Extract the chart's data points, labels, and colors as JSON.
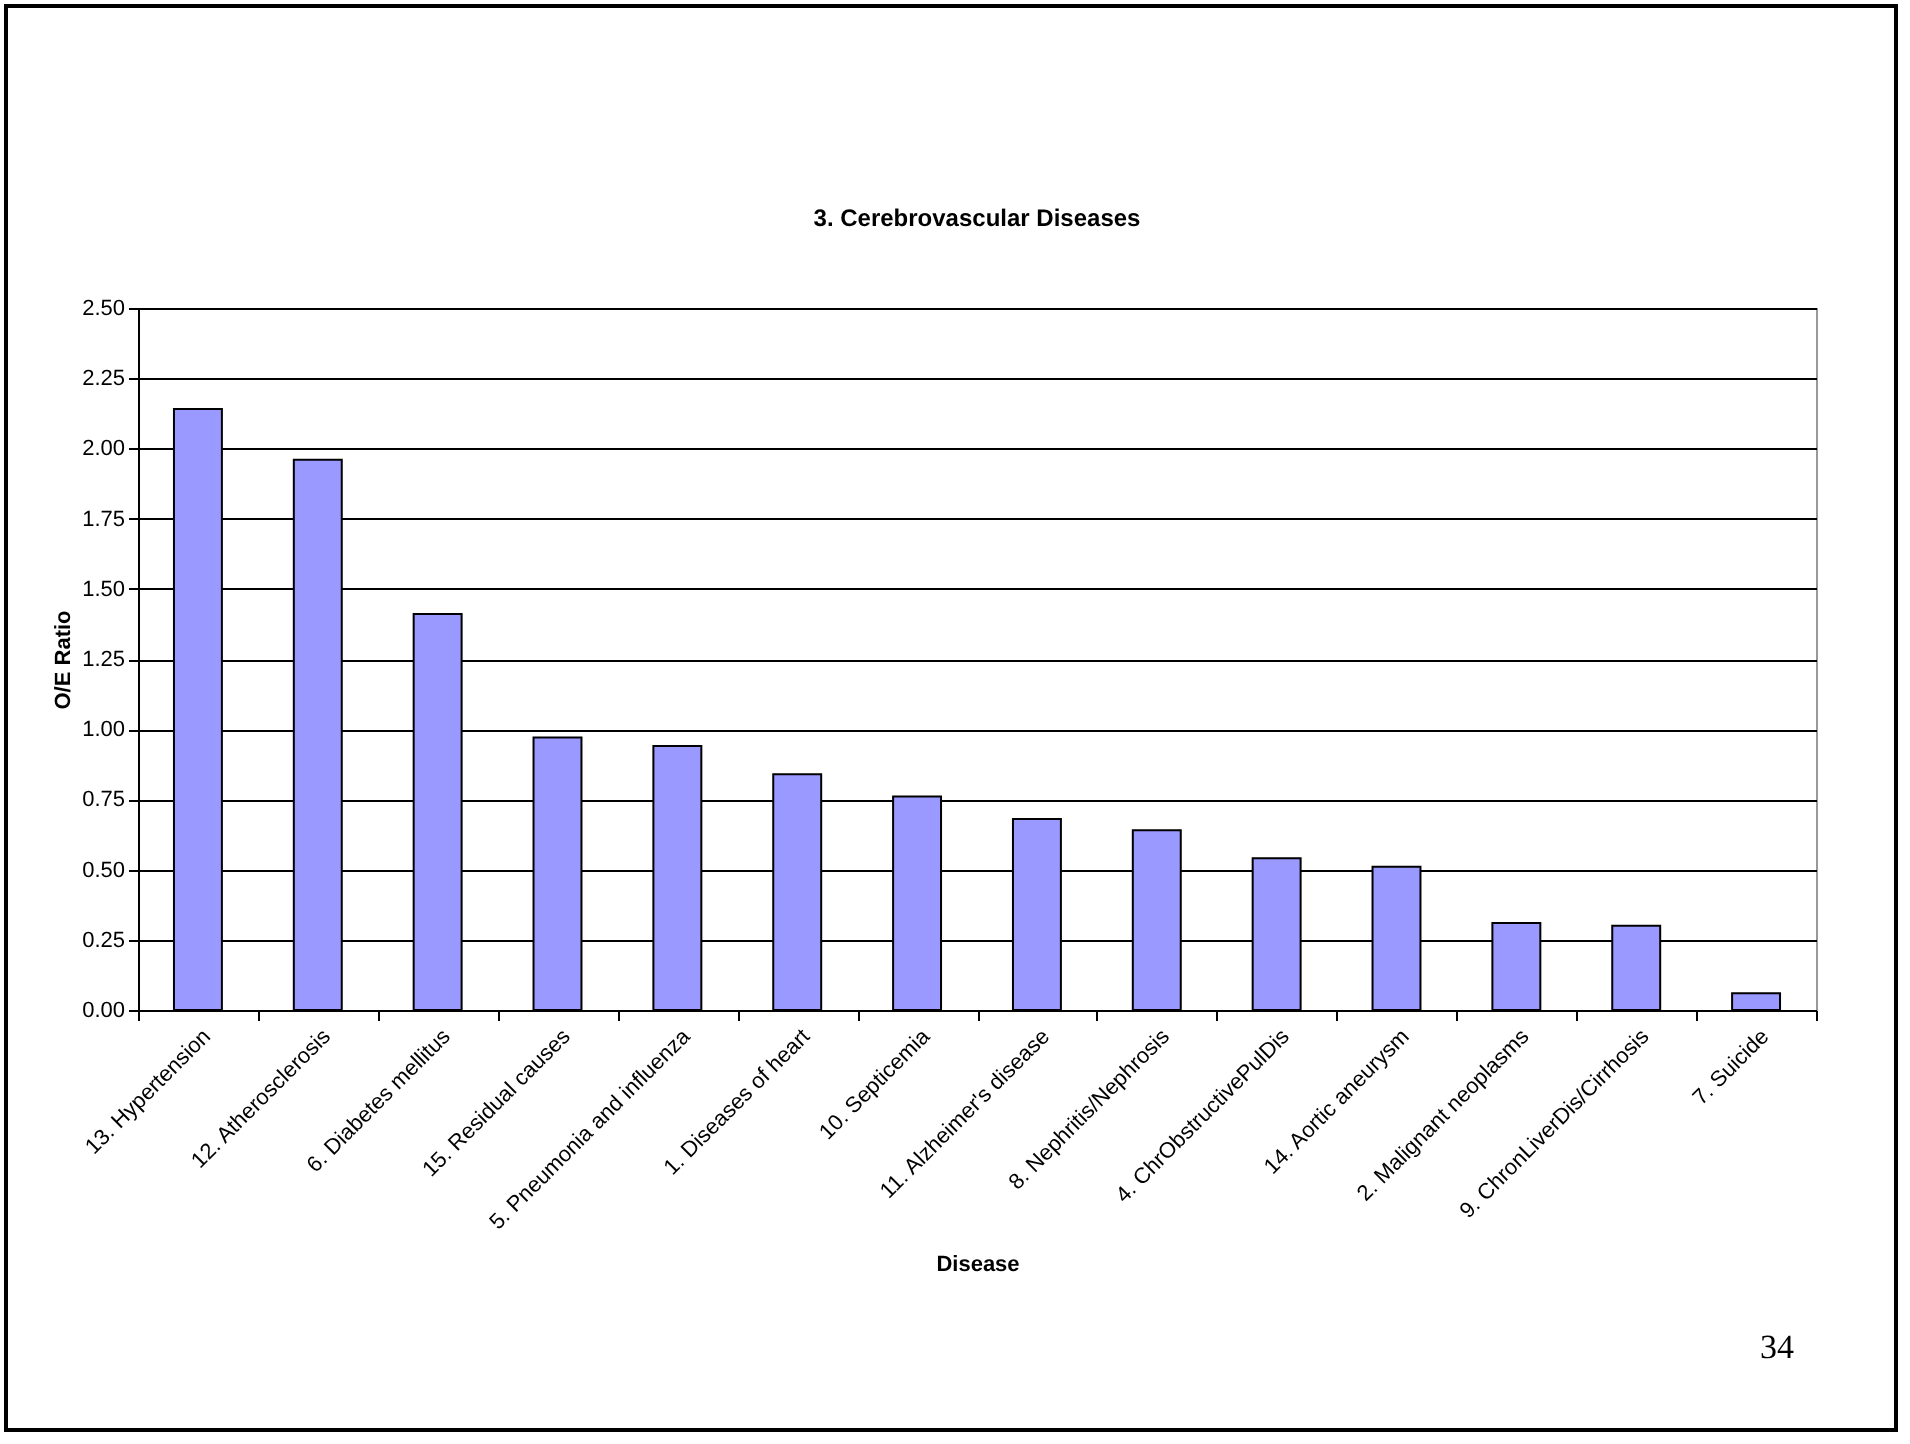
{
  "chart_data": {
    "type": "bar",
    "title": "3. Cerebrovascular Diseases",
    "xlabel": "Disease",
    "ylabel": "O/E Ratio",
    "categories": [
      "13. Hypertension",
      "12. Atherosclerosis",
      "6. Diabetes mellitus",
      "15. Residual causes",
      "5. Pneumonia and influenza",
      "1. Diseases of heart",
      "10. Septicemia",
      "11. Alzheimer's disease",
      "8. Nephritis/Nephrosis",
      "4. ChrObstructivePulDis",
      "14. Aortic aneurysm",
      "2. Malignant neoplasms",
      "9. ChronLiverDis/Cirrhosis",
      "7. Suicide"
    ],
    "values": [
      2.14,
      1.96,
      1.41,
      0.97,
      0.94,
      0.84,
      0.76,
      0.68,
      0.64,
      0.54,
      0.51,
      0.31,
      0.3,
      0.06
    ],
    "color": "#9999ff",
    "ylim": [
      0,
      2.5
    ],
    "yticks": [
      {
        "value": 0,
        "label": "0.00"
      },
      {
        "value": 0.25,
        "label": "0.25"
      },
      {
        "value": 0.5,
        "label": "0.50"
      },
      {
        "value": 0.75,
        "label": "0.75"
      },
      {
        "value": 1,
        "label": "1.00"
      },
      {
        "value": 1.25,
        "label": "1.25"
      },
      {
        "value": 1.5,
        "label": "1.50"
      },
      {
        "value": 1.75,
        "label": "1.75"
      },
      {
        "value": 2,
        "label": "2.00"
      },
      {
        "value": 2.25,
        "label": "2.25"
      },
      {
        "value": 2.5,
        "label": "2.50"
      }
    ],
    "grid": "y",
    "annotations": [
      "34"
    ]
  }
}
